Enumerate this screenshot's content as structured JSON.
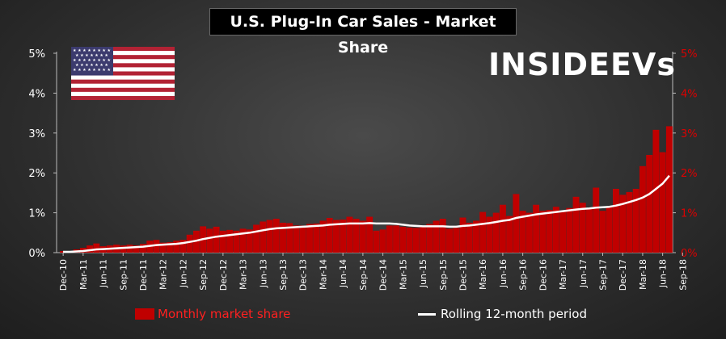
{
  "title": "U.S. Plug-In Car Sales - Market Share",
  "brand": {
    "name": "INSIDE",
    "suffix": "EVs"
  },
  "colors": {
    "bars": "#c00000",
    "line": "#ffffff",
    "left_axis_text": "#ffffff",
    "right_axis_text": "#dd0000",
    "legend_bar_text": "#ff2020"
  },
  "legend": {
    "bar_label": "Monthly market share",
    "line_label": "Rolling 12-month period"
  },
  "chart_data": {
    "type": "bar",
    "title": "U.S. Plug-In Car Sales - Market Share",
    "ylim": [
      0,
      5
    ],
    "y_ticks": [
      "0%",
      "1%",
      "2%",
      "3%",
      "4%",
      "5%"
    ],
    "y2_ticks": [
      "0%",
      "1%",
      "2%",
      "3%",
      "4%",
      "5%"
    ],
    "grid": false,
    "legend_position": "bottom",
    "x_tick_labels": [
      "Dec-10",
      "Mar-11",
      "Jun-11",
      "Sep-11",
      "Dec-11",
      "Mar-12",
      "Jun-12",
      "Sep-12",
      "Dec-12",
      "Mar-13",
      "Jun-13",
      "Sep-13",
      "Dec-13",
      "Mar-14",
      "Jun-14",
      "Sep-14",
      "Dec-14",
      "Mar-15",
      "Jun-15",
      "Sep-15",
      "Dec-15",
      "Mar-16",
      "Jun-16",
      "Sep-16",
      "Dec-16",
      "Mar-17",
      "Jun-17",
      "Sep-17",
      "Dec-17",
      "Mar-18",
      "Jun-18",
      "Sep-18"
    ],
    "series": [
      {
        "name": "Monthly market share",
        "type": "bar",
        "values": [
          0.04,
          0.04,
          0.08,
          0.12,
          0.18,
          0.23,
          0.16,
          0.18,
          0.2,
          0.18,
          0.2,
          0.18,
          0.22,
          0.3,
          0.32,
          0.25,
          0.26,
          0.3,
          0.32,
          0.45,
          0.55,
          0.66,
          0.6,
          0.65,
          0.55,
          0.57,
          0.55,
          0.6,
          0.58,
          0.7,
          0.78,
          0.82,
          0.85,
          0.75,
          0.74,
          0.68,
          0.68,
          0.72,
          0.73,
          0.8,
          0.87,
          0.82,
          0.83,
          0.9,
          0.85,
          0.8,
          0.9,
          0.55,
          0.58,
          0.68,
          0.68,
          0.65,
          0.63,
          0.62,
          0.68,
          0.72,
          0.8,
          0.85,
          0.6,
          0.62,
          0.88,
          0.75,
          0.8,
          1.02,
          0.9,
          1.0,
          1.2,
          0.92,
          1.47,
          1.05,
          1.0,
          1.2,
          1.05,
          1.07,
          1.15,
          1.05,
          1.12,
          1.4,
          1.25,
          1.12,
          1.63,
          1.05,
          1.15,
          1.6,
          1.45,
          1.52,
          1.6,
          2.17,
          2.45,
          3.08,
          2.52,
          3.17
        ]
      },
      {
        "name": "Rolling 12-month period",
        "type": "line",
        "values": [
          0.02,
          0.02,
          0.03,
          0.04,
          0.06,
          0.08,
          0.09,
          0.1,
          0.11,
          0.12,
          0.13,
          0.14,
          0.15,
          0.17,
          0.19,
          0.2,
          0.21,
          0.22,
          0.24,
          0.27,
          0.3,
          0.34,
          0.37,
          0.4,
          0.42,
          0.44,
          0.46,
          0.48,
          0.5,
          0.53,
          0.56,
          0.59,
          0.61,
          0.62,
          0.63,
          0.64,
          0.65,
          0.66,
          0.67,
          0.68,
          0.7,
          0.71,
          0.72,
          0.73,
          0.73,
          0.73,
          0.74,
          0.73,
          0.73,
          0.73,
          0.72,
          0.7,
          0.68,
          0.67,
          0.66,
          0.66,
          0.66,
          0.66,
          0.65,
          0.65,
          0.67,
          0.68,
          0.7,
          0.72,
          0.74,
          0.77,
          0.8,
          0.82,
          0.87,
          0.9,
          0.93,
          0.96,
          0.98,
          1.0,
          1.02,
          1.04,
          1.06,
          1.08,
          1.1,
          1.11,
          1.13,
          1.14,
          1.15,
          1.18,
          1.22,
          1.27,
          1.32,
          1.38,
          1.47,
          1.6,
          1.73,
          1.93
        ]
      }
    ]
  }
}
